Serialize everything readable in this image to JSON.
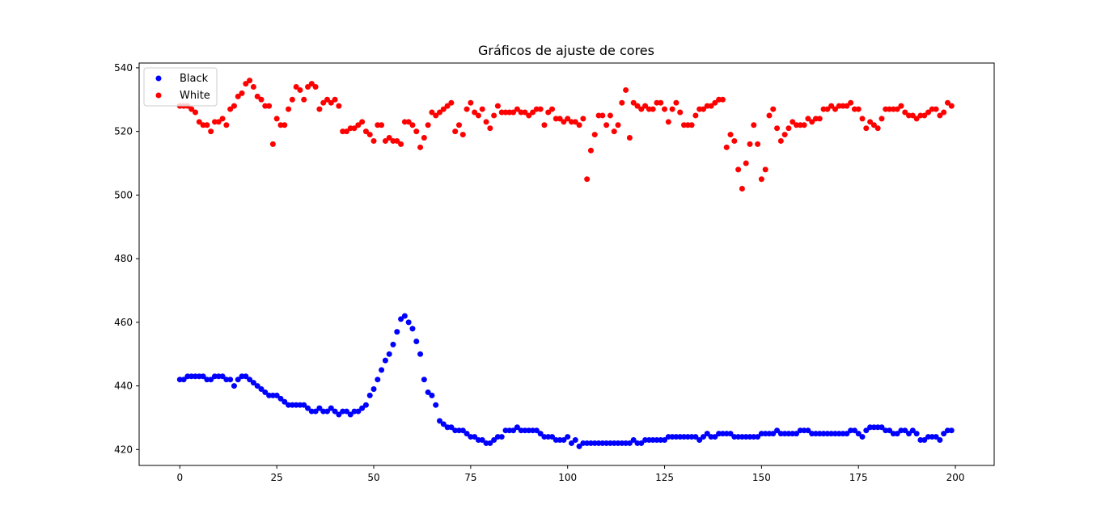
{
  "chart_data": {
    "type": "scatter",
    "title": "Gráficos de ajuste de cores",
    "xlabel": "",
    "ylabel": "",
    "xlim": [
      -10.5,
      210
    ],
    "ylim": [
      415,
      541.5
    ],
    "xticks": [
      0,
      25,
      50,
      75,
      100,
      125,
      150,
      175,
      200
    ],
    "yticks": [
      420,
      440,
      460,
      480,
      500,
      520,
      540
    ],
    "grid": false,
    "legend_position": "top-left",
    "series": [
      {
        "name": "Black",
        "color": "#0000ff",
        "x_start": 0,
        "x_step": 1,
        "values": [
          442,
          442,
          443,
          443,
          443,
          443,
          443,
          442,
          442,
          443,
          443,
          443,
          442,
          442,
          440,
          442,
          443,
          443,
          442,
          441,
          440,
          439,
          438,
          437,
          437,
          437,
          436,
          435,
          434,
          434,
          434,
          434,
          434,
          433,
          432,
          432,
          433,
          432,
          432,
          433,
          432,
          431,
          432,
          432,
          431,
          432,
          432,
          433,
          434,
          437,
          439,
          442,
          445,
          448,
          450,
          453,
          457,
          461,
          462,
          460,
          458,
          454,
          450,
          442,
          438,
          437,
          434,
          429,
          428,
          427,
          427,
          426,
          426,
          426,
          425,
          424,
          424,
          423,
          423,
          422,
          422,
          423,
          424,
          424,
          426,
          426,
          426,
          427,
          426,
          426,
          426,
          426,
          426,
          425,
          424,
          424,
          424,
          423,
          423,
          423,
          424,
          422,
          423,
          421,
          422,
          422,
          422,
          422,
          422,
          422,
          422,
          422,
          422,
          422,
          422,
          422,
          422,
          423,
          422,
          422,
          423,
          423,
          423,
          423,
          423,
          423,
          424,
          424,
          424,
          424,
          424,
          424,
          424,
          424,
          423,
          424,
          425,
          424,
          424,
          425,
          425,
          425,
          425,
          424,
          424,
          424,
          424,
          424,
          424,
          424,
          425,
          425,
          425,
          425,
          426,
          425,
          425,
          425,
          425,
          425,
          426,
          426,
          426,
          425,
          425,
          425,
          425,
          425,
          425,
          425,
          425,
          425,
          425,
          426,
          426,
          425,
          424,
          426,
          427,
          427,
          427,
          427,
          426,
          426,
          425,
          425,
          426,
          426,
          425,
          426,
          425,
          423,
          423,
          424,
          424,
          424,
          423,
          425,
          426,
          426
        ]
      },
      {
        "name": "White",
        "color": "#ff0000",
        "x_start": 0,
        "x_step": 1,
        "values": [
          528,
          528,
          528,
          527,
          526,
          523,
          522,
          522,
          520,
          523,
          523,
          524,
          522,
          527,
          528,
          531,
          532,
          535,
          536,
          534,
          531,
          530,
          528,
          528,
          516,
          524,
          522,
          522,
          527,
          530,
          534,
          533,
          530,
          534,
          535,
          534,
          527,
          529,
          530,
          529,
          530,
          528,
          520,
          520,
          521,
          521,
          522,
          523,
          520,
          519,
          517,
          522,
          522,
          517,
          518,
          517,
          517,
          516,
          523,
          523,
          522,
          520,
          515,
          518,
          522,
          526,
          525,
          526,
          527,
          528,
          529,
          520,
          522,
          519,
          527,
          529,
          526,
          525,
          527,
          523,
          521,
          525,
          528,
          526,
          526,
          526,
          526,
          527,
          526,
          526,
          525,
          526,
          527,
          527,
          522,
          526,
          527,
          524,
          524,
          523,
          524,
          523,
          523,
          522,
          524,
          505,
          514,
          519,
          525,
          525,
          522,
          525,
          520,
          522,
          529,
          533,
          518,
          529,
          528,
          527,
          528,
          527,
          527,
          529,
          529,
          527,
          523,
          527,
          529,
          526,
          522,
          522,
          522,
          525,
          527,
          527,
          528,
          528,
          529,
          530,
          530,
          515,
          519,
          517,
          508,
          502,
          510,
          516,
          522,
          516,
          505,
          508,
          525,
          527,
          521,
          517,
          519,
          521,
          523,
          522,
          522,
          522,
          524,
          523,
          524,
          524,
          527,
          527,
          528,
          527,
          528,
          528,
          528,
          529,
          527,
          527,
          524,
          521,
          523,
          522,
          521,
          524,
          527,
          527,
          527,
          527,
          528,
          526,
          525,
          525,
          524,
          525,
          525,
          526,
          527,
          527,
          525,
          526,
          529,
          528
        ]
      }
    ]
  }
}
